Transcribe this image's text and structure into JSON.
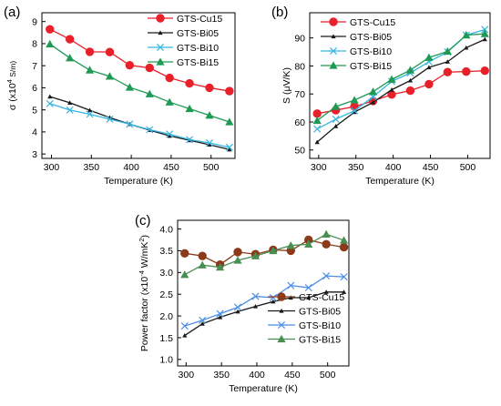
{
  "chart_data": [
    {
      "type": "line",
      "panel_label": "(a)",
      "xlabel": "Temperature (K)",
      "ylabel": {
        "base": "σ (x10",
        "sup": "4",
        "tail": " S/m)"
      },
      "xlim": [
        288,
        530
      ],
      "ylim": [
        2.8,
        9.4
      ],
      "xticks": [
        300,
        350,
        400,
        450,
        500
      ],
      "yticks": [
        3,
        4,
        5,
        6,
        7,
        8,
        9
      ],
      "grid": false,
      "legend": "top-right",
      "x": [
        298,
        323,
        348,
        373,
        398,
        423,
        448,
        473,
        498,
        523
      ],
      "series": [
        {
          "name": "GTS-Cu15",
          "color": "#e8202a",
          "marker": "circle",
          "values": [
            8.65,
            8.2,
            7.63,
            7.62,
            7.02,
            6.9,
            6.45,
            6.2,
            6.0,
            5.85
          ]
        },
        {
          "name": "GTS-Bi05",
          "color": "#1a1a1a",
          "marker": "tri-small",
          "values": [
            5.6,
            5.32,
            4.98,
            4.65,
            4.35,
            4.08,
            3.82,
            3.62,
            3.42,
            3.2
          ]
        },
        {
          "name": "GTS-Bi10",
          "color": "#35b6e3",
          "marker": "x",
          "values": [
            5.28,
            4.99,
            4.8,
            4.58,
            4.35,
            4.1,
            3.9,
            3.65,
            3.5,
            3.3
          ]
        },
        {
          "name": "GTS-Bi15",
          "color": "#1e9a55",
          "marker": "triangle",
          "values": [
            7.98,
            7.35,
            6.8,
            6.52,
            6.02,
            5.72,
            5.35,
            5.05,
            4.75,
            4.45
          ]
        }
      ]
    },
    {
      "type": "line",
      "panel_label": "(b)",
      "xlabel": "Temperature (K)",
      "ylabel": {
        "base": "S (μV/K)",
        "sup": "",
        "tail": ""
      },
      "xlim": [
        288,
        530
      ],
      "ylim": [
        47,
        99
      ],
      "xticks": [
        300,
        350,
        400,
        450,
        500
      ],
      "yticks": [
        50,
        60,
        70,
        80,
        90
      ],
      "grid": false,
      "legend": "top-left",
      "x": [
        298,
        323,
        348,
        373,
        398,
        423,
        448,
        473,
        498,
        523
      ],
      "series": [
        {
          "name": "GTS-Cu15",
          "color": "#e8202a",
          "marker": "circle",
          "values": [
            63.0,
            64.2,
            65.5,
            67.5,
            69.8,
            71.2,
            73.5,
            77.8,
            78.0,
            78.3
          ]
        },
        {
          "name": "GTS-Bi05",
          "color": "#1a1a1a",
          "marker": "tri-small",
          "values": [
            52.8,
            58.5,
            63.5,
            67.0,
            71.5,
            74.8,
            79.5,
            81.5,
            86.5,
            89.5
          ]
        },
        {
          "name": "GTS-Bi10",
          "color": "#35b6e3",
          "marker": "x",
          "values": [
            57.5,
            61.0,
            64.0,
            69.0,
            74.5,
            77.5,
            81.5,
            85.0,
            91.0,
            93.0
          ]
        },
        {
          "name": "GTS-Bi15",
          "color": "#1e9a55",
          "marker": "triangle",
          "values": [
            60.5,
            65.5,
            67.8,
            70.8,
            75.2,
            78.5,
            83.0,
            85.2,
            91.0,
            91.5
          ]
        }
      ]
    },
    {
      "type": "line",
      "panel_label": "(c)",
      "xlabel": "Temperature (K)",
      "ylabel": {
        "base": "Power factor (x10",
        "sup": "-4",
        "tail": " W/mK",
        "sup2": "2",
        "tail2": ")"
      },
      "xlim": [
        288,
        530
      ],
      "ylim": [
        0.85,
        4.2
      ],
      "xticks": [
        300,
        350,
        400,
        450,
        500
      ],
      "yticks": [
        1.0,
        1.5,
        2.0,
        2.5,
        3.0,
        3.5,
        4.0
      ],
      "ytick_labels": [
        "1.0",
        "1.5",
        "2.0",
        "2.5",
        "3.0",
        "3.5",
        "4.0"
      ],
      "grid": false,
      "legend": "bottom-right",
      "x": [
        298,
        323,
        348,
        373,
        398,
        423,
        448,
        473,
        498,
        523
      ],
      "series": [
        {
          "name": "GTS-Cu15",
          "color": "#8b3a1a",
          "marker": "circle",
          "values": [
            3.44,
            3.38,
            3.18,
            3.47,
            3.42,
            3.52,
            3.5,
            3.75,
            3.65,
            3.58
          ]
        },
        {
          "name": "GTS-Bi05",
          "color": "#1a1a1a",
          "marker": "tri-small",
          "values": [
            1.55,
            1.82,
            1.97,
            2.1,
            2.22,
            2.33,
            2.42,
            2.42,
            2.55,
            2.55
          ]
        },
        {
          "name": "GTS-Bi10",
          "color": "#4a8ee8",
          "marker": "x",
          "values": [
            1.77,
            1.9,
            2.05,
            2.2,
            2.45,
            2.42,
            2.7,
            2.65,
            2.92,
            2.9
          ]
        },
        {
          "name": "GTS-Bi15",
          "color": "#4a8f52",
          "marker": "triangle",
          "values": [
            2.95,
            3.17,
            3.12,
            3.28,
            3.38,
            3.5,
            3.62,
            3.65,
            3.88,
            3.74
          ]
        }
      ]
    }
  ]
}
